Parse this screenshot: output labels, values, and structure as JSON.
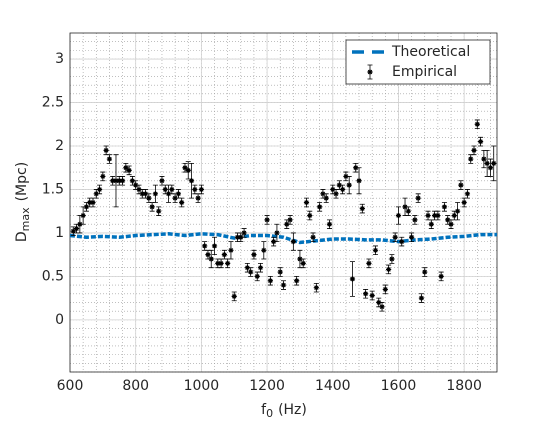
{
  "chart_data": {
    "type": "errorbar",
    "xlabel": {
      "main": "f",
      "sub": "0",
      "unit": "(Hz)"
    },
    "ylabel": {
      "main": "D",
      "sub": "max",
      "unit": "(Mpc)"
    },
    "xlim": [
      600,
      1900
    ],
    "xticks": [
      600,
      800,
      1000,
      1200,
      1400,
      1600,
      1800
    ],
    "ylim": [
      -0.6,
      3.3
    ],
    "yticks": [
      0,
      0.5,
      1,
      1.5,
      2,
      2.5,
      3
    ],
    "grid": true,
    "minor_grid": true,
    "legend": "upper right",
    "series": [
      {
        "name": "Theoretical",
        "color": "#0072bd",
        "style": "dashed",
        "x": [
          600,
          650,
          700,
          750,
          800,
          850,
          900,
          950,
          1000,
          1050,
          1100,
          1150,
          1200,
          1250,
          1300,
          1350,
          1400,
          1450,
          1500,
          1550,
          1600,
          1650,
          1700,
          1750,
          1800,
          1850,
          1900
        ],
        "values": [
          0.97,
          0.95,
          0.96,
          0.95,
          0.97,
          0.98,
          0.99,
          0.97,
          0.99,
          0.98,
          0.94,
          0.97,
          0.97,
          0.95,
          0.89,
          0.91,
          0.93,
          0.93,
          0.92,
          0.92,
          0.9,
          0.92,
          0.93,
          0.95,
          0.96,
          0.98,
          0.98
        ]
      },
      {
        "name": "Empirical",
        "color": "#000000",
        "style": "errorbar",
        "x": [
          610,
          620,
          630,
          640,
          650,
          660,
          670,
          680,
          690,
          700,
          710,
          720,
          730,
          740,
          750,
          760,
          770,
          780,
          790,
          800,
          810,
          820,
          830,
          840,
          850,
          860,
          870,
          880,
          890,
          900,
          910,
          920,
          930,
          940,
          950,
          960,
          970,
          980,
          990,
          1000,
          1010,
          1020,
          1030,
          1040,
          1050,
          1060,
          1070,
          1080,
          1090,
          1100,
          1110,
          1120,
          1130,
          1140,
          1150,
          1160,
          1170,
          1180,
          1190,
          1200,
          1210,
          1220,
          1230,
          1240,
          1250,
          1260,
          1270,
          1280,
          1290,
          1300,
          1310,
          1320,
          1330,
          1340,
          1350,
          1360,
          1370,
          1380,
          1390,
          1400,
          1410,
          1420,
          1430,
          1440,
          1450,
          1460,
          1470,
          1480,
          1490,
          1500,
          1510,
          1520,
          1530,
          1540,
          1550,
          1560,
          1570,
          1580,
          1590,
          1600,
          1610,
          1620,
          1630,
          1640,
          1650,
          1660,
          1670,
          1680,
          1690,
          1700,
          1710,
          1720,
          1730,
          1740,
          1750,
          1760,
          1770,
          1780,
          1790,
          1800,
          1810,
          1820,
          1830,
          1840,
          1850,
          1860,
          1870,
          1880,
          1890
        ],
        "values": [
          1.02,
          1.05,
          1.1,
          1.2,
          1.3,
          1.35,
          1.35,
          1.45,
          1.5,
          1.65,
          1.95,
          1.85,
          1.6,
          1.6,
          1.6,
          1.6,
          1.75,
          1.72,
          1.6,
          1.55,
          1.5,
          1.45,
          1.45,
          1.4,
          1.3,
          1.45,
          1.25,
          1.6,
          1.5,
          1.45,
          1.5,
          1.4,
          1.45,
          1.35,
          1.75,
          1.72,
          1.6,
          1.5,
          1.4,
          1.5,
          0.85,
          0.75,
          0.7,
          0.85,
          0.65,
          0.65,
          0.75,
          0.65,
          0.8,
          0.27,
          0.95,
          0.95,
          1.0,
          0.6,
          0.55,
          0.75,
          0.5,
          0.6,
          0.8,
          1.15,
          0.45,
          0.9,
          1.0,
          0.55,
          0.4,
          1.1,
          1.15,
          0.9,
          0.45,
          0.7,
          0.65,
          1.35,
          1.2,
          0.95,
          0.37,
          1.3,
          1.45,
          1.4,
          1.1,
          1.5,
          1.45,
          1.55,
          1.5,
          1.65,
          1.55,
          0.47,
          1.75,
          1.6,
          1.28,
          0.3,
          0.65,
          0.28,
          0.8,
          0.2,
          0.15,
          0.35,
          0.58,
          0.7,
          0.95,
          1.2,
          0.9,
          1.3,
          1.25,
          0.95,
          1.15,
          1.4,
          0.25,
          0.55,
          1.2,
          1.1,
          1.2,
          1.2,
          0.5,
          1.3,
          1.15,
          1.1,
          1.2,
          1.25,
          1.55,
          1.35,
          1.45,
          1.85,
          1.95,
          2.25,
          2.05,
          1.85,
          1.8,
          1.75,
          1.8
        ],
        "errors": [
          0.05,
          0.05,
          0.1,
          0.1,
          0.05,
          0.05,
          0.05,
          0.05,
          0.05,
          0.05,
          0.05,
          0.05,
          0.05,
          0.3,
          0.05,
          0.05,
          0.05,
          0.05,
          0.05,
          0.05,
          0.05,
          0.05,
          0.05,
          0.05,
          0.05,
          0.1,
          0.05,
          0.05,
          0.05,
          0.1,
          0.05,
          0.05,
          0.05,
          0.05,
          0.05,
          0.1,
          0.2,
          0.05,
          0.05,
          0.05,
          0.05,
          0.05,
          0.1,
          0.1,
          0.05,
          0.05,
          0.05,
          0.05,
          0.1,
          0.05,
          0.05,
          0.05,
          0.05,
          0.05,
          0.05,
          0.05,
          0.05,
          0.05,
          0.1,
          0.05,
          0.05,
          0.05,
          0.1,
          0.05,
          0.05,
          0.05,
          0.05,
          0.1,
          0.05,
          0.1,
          0.05,
          0.05,
          0.05,
          0.05,
          0.05,
          0.05,
          0.05,
          0.05,
          0.05,
          0.05,
          0.05,
          0.05,
          0.05,
          0.05,
          0.1,
          0.2,
          0.05,
          0.15,
          0.05,
          0.05,
          0.05,
          0.05,
          0.05,
          0.05,
          0.05,
          0.05,
          0.05,
          0.05,
          0.05,
          0.1,
          0.05,
          0.1,
          0.05,
          0.05,
          0.05,
          0.05,
          0.05,
          0.05,
          0.05,
          0.05,
          0.05,
          0.05,
          0.05,
          0.05,
          0.05,
          0.05,
          0.05,
          0.1,
          0.05,
          0.05,
          0.05,
          0.05,
          0.05,
          0.05,
          0.05,
          0.1,
          0.15,
          0.1,
          0.2
        ]
      }
    ]
  }
}
